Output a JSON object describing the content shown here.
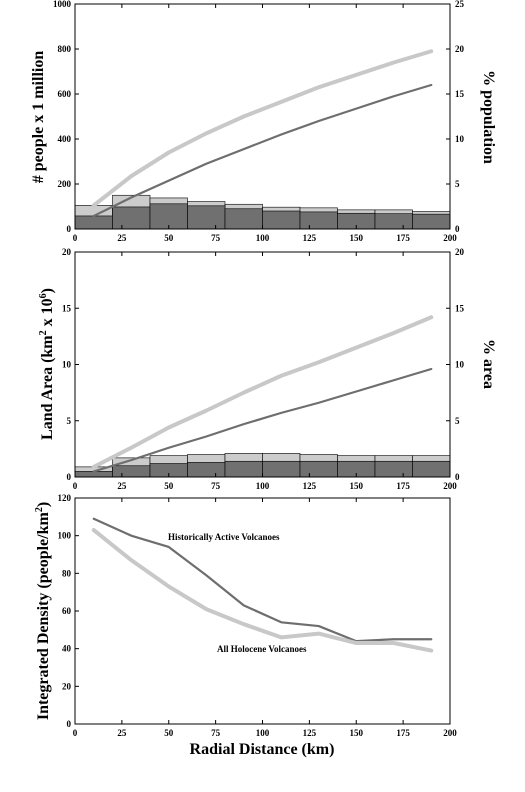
{
  "colors": {
    "light": "#cccccc",
    "dark": "#707070",
    "lightLine": "#c8c8c8",
    "darkLine": "#6e6e6e"
  },
  "chart_data": [
    {
      "type": "bar+line",
      "ylabel_left": "# people x 1 million",
      "ylabel_right": "% population",
      "xlim": [
        0,
        200
      ],
      "ylim_left": [
        0,
        1000
      ],
      "ylim_right": [
        0,
        25
      ],
      "x_ticks": [
        0,
        25,
        50,
        75,
        100,
        125,
        150,
        175,
        200
      ],
      "y_ticks_left": [
        0,
        200,
        400,
        600,
        800,
        1000
      ],
      "y_ticks_right": [
        0,
        5,
        10,
        15,
        20,
        25
      ],
      "bins": [
        [
          0,
          20
        ],
        [
          20,
          40
        ],
        [
          40,
          60
        ],
        [
          60,
          80
        ],
        [
          80,
          100
        ],
        [
          100,
          120
        ],
        [
          120,
          140
        ],
        [
          140,
          160
        ],
        [
          160,
          180
        ],
        [
          180,
          200
        ]
      ],
      "bars_light": [
        105,
        150,
        138,
        122,
        110,
        97,
        94,
        85,
        85,
        78
      ],
      "bars_dark": [
        58,
        98,
        112,
        103,
        90,
        80,
        76,
        70,
        68,
        66
      ],
      "series": [
        {
          "style": "light",
          "x": [
            10,
            30,
            50,
            70,
            90,
            110,
            130,
            150,
            170,
            190
          ],
          "y": [
            105,
            235,
            340,
            425,
            500,
            565,
            630,
            685,
            740,
            790
          ]
        },
        {
          "style": "dark",
          "x": [
            10,
            30,
            50,
            70,
            90,
            110,
            130,
            150,
            170,
            190
          ],
          "y": [
            58,
            140,
            215,
            290,
            355,
            420,
            480,
            535,
            590,
            640
          ]
        }
      ]
    },
    {
      "type": "bar+line",
      "ylabel_left": "Land Area (km",
      "ylabel_left_sup2": "2",
      "ylabel_left_mid": " x 10",
      "ylabel_left_sup6": "6",
      "ylabel_left_end": ")",
      "ylabel_right": "% area",
      "xlim": [
        0,
        200
      ],
      "ylim_left": [
        0,
        20
      ],
      "ylim_right": [
        0,
        20
      ],
      "x_ticks": [
        0,
        25,
        50,
        75,
        100,
        125,
        150,
        175,
        200
      ],
      "y_ticks_left": [
        0,
        5,
        10,
        15,
        20
      ],
      "y_ticks_right": [
        0,
        5,
        10,
        15,
        20
      ],
      "bins": [
        [
          0,
          20
        ],
        [
          20,
          40
        ],
        [
          40,
          60
        ],
        [
          60,
          80
        ],
        [
          80,
          100
        ],
        [
          100,
          120
        ],
        [
          120,
          140
        ],
        [
          140,
          160
        ],
        [
          160,
          180
        ],
        [
          180,
          200
        ]
      ],
      "bars_light": [
        0.9,
        1.7,
        1.9,
        2.0,
        2.1,
        2.1,
        2.0,
        1.9,
        1.9,
        1.9
      ],
      "bars_dark": [
        0.5,
        1.0,
        1.2,
        1.3,
        1.4,
        1.4,
        1.4,
        1.4,
        1.4,
        1.4
      ],
      "series": [
        {
          "style": "light",
          "x": [
            10,
            30,
            50,
            70,
            90,
            110,
            130,
            150,
            170,
            190
          ],
          "y": [
            0.9,
            2.6,
            4.4,
            5.9,
            7.5,
            9.0,
            10.2,
            11.5,
            12.8,
            14.2
          ]
        },
        {
          "style": "dark",
          "x": [
            10,
            30,
            50,
            70,
            90,
            110,
            130,
            150,
            170,
            190
          ],
          "y": [
            0.5,
            1.5,
            2.6,
            3.6,
            4.7,
            5.7,
            6.6,
            7.6,
            8.6,
            9.6
          ]
        }
      ]
    },
    {
      "type": "line",
      "ylabel": "Integrated Density (people/km",
      "ylabel_sup": "2",
      "ylabel_end": ")",
      "xlabel": "Radial Distance (km)",
      "xlim": [
        0,
        200
      ],
      "ylim": [
        0,
        120
      ],
      "x_ticks": [
        0,
        25,
        50,
        75,
        100,
        125,
        150,
        175,
        200
      ],
      "y_ticks": [
        0,
        20,
        40,
        60,
        80,
        100,
        120
      ],
      "series": [
        {
          "name": "Historically Active Volcanoes",
          "style": "dark",
          "x": [
            10,
            30,
            50,
            70,
            90,
            110,
            130,
            150,
            170,
            190
          ],
          "y": [
            109,
            100,
            94,
            79,
            63,
            54,
            52,
            44,
            45,
            45
          ]
        },
        {
          "name": "All Holocene Volcanoes",
          "style": "light",
          "x": [
            10,
            30,
            50,
            70,
            90,
            110,
            130,
            150,
            170,
            190
          ],
          "y": [
            103,
            87,
            73,
            61,
            53,
            46,
            48,
            43,
            43,
            39
          ]
        }
      ]
    }
  ]
}
